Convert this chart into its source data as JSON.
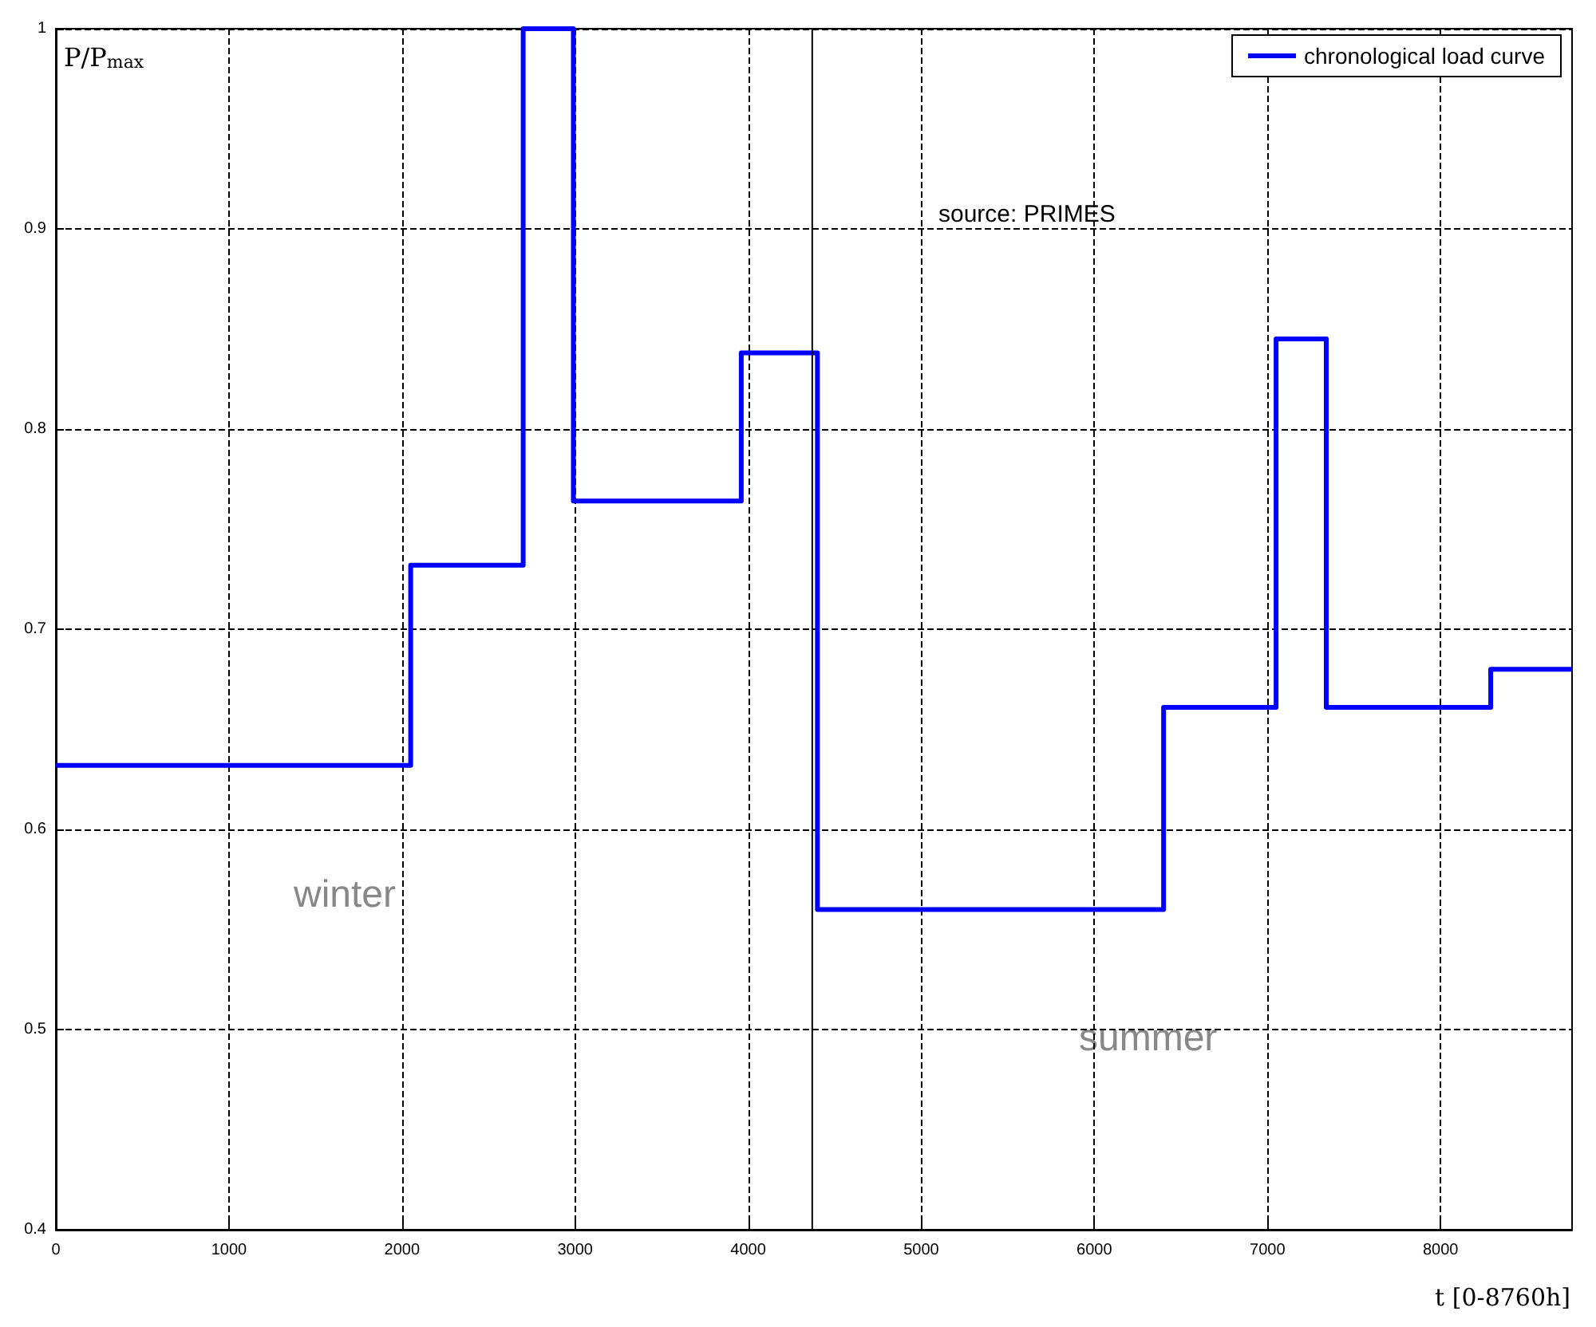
{
  "chart_data": {
    "type": "step",
    "ylabel": "P/P$_{max}$",
    "xlabel": "t [0-8760h]",
    "x": [
      0,
      2050,
      2700,
      2990,
      3960,
      4400,
      6400,
      7050,
      7340,
      8290,
      8760
    ],
    "series": [
      {
        "name": "chronological load curve",
        "color": "#0000ff",
        "values": [
          0.632,
          0.732,
          1.0,
          0.764,
          0.838,
          0.56,
          0.661,
          0.845,
          0.661,
          0.68,
          0.68
        ]
      }
    ],
    "xlim": [
      0,
      8760
    ],
    "xticks": [
      0,
      1000,
      2000,
      3000,
      4000,
      5000,
      6000,
      7000,
      8000
    ],
    "ylim": [
      0.4,
      1
    ],
    "yticks": [
      0.4,
      0.5,
      0.6,
      0.7,
      0.8,
      0.9,
      1
    ],
    "ref_lines": [
      {
        "axis": "x",
        "value": 4370,
        "color": "#000000"
      }
    ],
    "annotations": [
      "source: PRIMES",
      "winter",
      "summer"
    ],
    "grid": true,
    "legend": "top right",
    "line_style": "solid",
    "marker": "none"
  }
}
